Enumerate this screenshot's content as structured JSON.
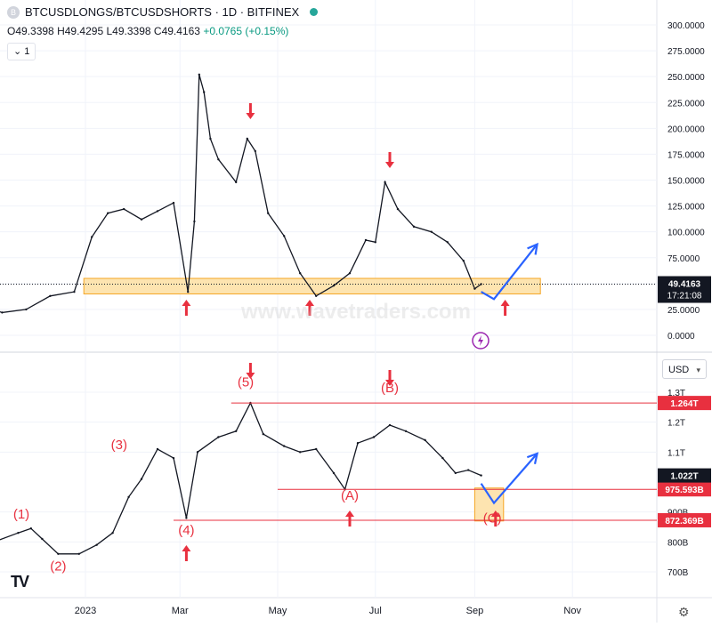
{
  "header": {
    "title": "BTCUSDLONGS/BTCUSDSHORTS · 1D · BITFINEX",
    "logo_letter": "B",
    "status_color": "#26a69a"
  },
  "ohlc": {
    "o_label": "O",
    "o": "49.3398",
    "h_label": "H",
    "h": "49.4295",
    "l_label": "L",
    "l": "49.3398",
    "c_label": "C",
    "c": "49.4163",
    "change": "+0.0765 (+0.15%)"
  },
  "collapse_label": "1",
  "currency_select": {
    "label": "USD",
    "chevron": "▾"
  },
  "watermark": "www.wavetraders.com",
  "tv_logo": "TV",
  "settings_icon": "⚙",
  "colors": {
    "price": "#131722",
    "accent_red": "#e8303f",
    "accent_blue": "#2962ff",
    "zone_fill": "#fde4b0",
    "zone_stroke": "#f5a623",
    "grid": "#f0f3fa"
  },
  "chart_data": [
    {
      "type": "line",
      "name": "upper-panel",
      "y_ticks": [
        "300.0000",
        "275.0000",
        "250.0000",
        "225.0000",
        "200.0000",
        "175.0000",
        "150.0000",
        "125.0000",
        "100.0000",
        "75.0000",
        "50.0000",
        "25.0000",
        "0.0000"
      ],
      "ylim": [
        0,
        300
      ],
      "x": [
        "2022-10-25",
        "2022-11-10",
        "2022-11-25",
        "2022-12-10",
        "2022-12-25",
        "2023-01-05",
        "2023-01-15",
        "2023-01-25",
        "2023-02-05",
        "2023-02-15",
        "2023-02-25",
        "2023-03-06",
        "2023-03-10",
        "2023-03-13",
        "2023-03-16",
        "2023-03-20",
        "2023-03-25",
        "2023-04-05",
        "2023-04-12",
        "2023-04-17",
        "2023-04-25",
        "2023-05-05",
        "2023-05-15",
        "2023-05-25",
        "2023-06-05",
        "2023-06-15",
        "2023-06-25",
        "2023-07-01",
        "2023-07-07",
        "2023-07-15",
        "2023-07-25",
        "2023-08-05",
        "2023-08-15",
        "2023-08-25",
        "2023-09-01",
        "2023-09-05"
      ],
      "values": [
        30,
        22,
        25,
        38,
        42,
        95,
        118,
        122,
        112,
        120,
        128,
        42,
        110,
        252,
        235,
        190,
        170,
        148,
        190,
        178,
        118,
        96,
        60,
        38,
        48,
        60,
        92,
        90,
        148,
        122,
        105,
        100,
        90,
        72,
        45,
        49.4163
      ],
      "price_label": "49.4163",
      "countdown": "17:21:08",
      "annotations": {
        "arrows_down_dates": [
          "2023-04-14",
          "2023-07-10"
        ],
        "arrows_up_dates": [
          "2023-03-05",
          "2023-05-21",
          "2023-09-20"
        ]
      },
      "projection": {
        "x": [
          "2023-09-05",
          "2023-09-13",
          "2023-10-10"
        ],
        "values": [
          42,
          35,
          88
        ]
      },
      "support_zone": {
        "x": [
          "2022-12-31",
          "2023-10-12"
        ],
        "values": [
          40,
          55
        ]
      }
    },
    {
      "type": "line",
      "name": "lower-panel",
      "y_ticks": [
        "1.3T",
        "1.2T",
        "1.1T",
        "900B",
        "800B",
        "700B"
      ],
      "ylim": [
        700000000000,
        1300000000000
      ],
      "x": [
        "2022-10-25",
        "2022-11-05",
        "2022-11-20",
        "2022-11-28",
        "2022-12-05",
        "2022-12-15",
        "2022-12-28",
        "2023-01-08",
        "2023-01-18",
        "2023-01-28",
        "2023-02-05",
        "2023-02-15",
        "2023-02-25",
        "2023-03-05",
        "2023-03-12",
        "2023-03-25",
        "2023-04-05",
        "2023-04-14",
        "2023-04-22",
        "2023-05-05",
        "2023-05-15",
        "2023-05-25",
        "2023-06-05",
        "2023-06-12",
        "2023-06-20",
        "2023-06-30",
        "2023-07-10",
        "2023-07-20",
        "2023-08-01",
        "2023-08-12",
        "2023-08-20",
        "2023-08-28",
        "2023-09-05"
      ],
      "values": [
        850000000000,
        800000000000,
        830000000000,
        845000000000,
        810000000000,
        760000000000,
        760000000000,
        790000000000,
        830000000000,
        950000000000,
        1010000000000,
        1110000000000,
        1080000000000,
        880000000000,
        1100000000000,
        1150000000000,
        1170000000000,
        1264000000000,
        1160000000000,
        1120000000000,
        1100000000000,
        1110000000000,
        1030000000000,
        975593000000,
        1130000000000,
        1150000000000,
        1190000000000,
        1170000000000,
        1140000000000,
        1080000000000,
        1030000000000,
        1040000000000,
        1022000000000
      ],
      "levels": [
        {
          "label": "1.264T",
          "value": 1264000000000,
          "from": "2023-04-02"
        },
        {
          "label": "975.593B",
          "value": 975593000000,
          "from": "2023-05-01"
        },
        {
          "label": "872.369B",
          "value": 872369000000,
          "from": "2023-02-25"
        }
      ],
      "price_label": "1.022T",
      "wave_labels": [
        {
          "text": "(1)",
          "x": "2022-11-22",
          "y": 878000000000
        },
        {
          "text": "(2)",
          "x": "2022-12-15",
          "y": 705000000000
        },
        {
          "text": "(3)",
          "x": "2023-01-22",
          "y": 1110000000000
        },
        {
          "text": "(4)",
          "x": "2023-03-05",
          "y": 825000000000
        },
        {
          "text": "(5)",
          "x": "2023-04-11",
          "y": 1320000000000
        },
        {
          "text": "(A)",
          "x": "2023-06-15",
          "y": 940000000000
        },
        {
          "text": "(B)",
          "x": "2023-07-10",
          "y": 1300000000000
        },
        {
          "text": "(C)",
          "x": "2023-09-12",
          "y": 865000000000
        }
      ],
      "annotations": {
        "arrows_down_dates": [
          "2023-04-14",
          "2023-07-10"
        ],
        "arrows_up_dates": [
          "2023-03-05",
          "2023-06-15",
          "2023-09-14"
        ]
      },
      "projection": {
        "x": [
          "2023-09-05",
          "2023-09-13",
          "2023-10-10"
        ],
        "values": [
          995000000000,
          930000000000,
          1095000000000
        ]
      },
      "target_zone": {
        "x": [
          "2023-09-01",
          "2023-09-19"
        ],
        "values": [
          870000000000,
          980000000000
        ]
      }
    }
  ],
  "x_axis": {
    "labels": [
      {
        "text": "2023",
        "date": "2023-01-01"
      },
      {
        "text": "Mar",
        "date": "2023-03-01"
      },
      {
        "text": "May",
        "date": "2023-05-01"
      },
      {
        "text": "Jul",
        "date": "2023-07-01"
      },
      {
        "text": "Sep",
        "date": "2023-09-01"
      },
      {
        "text": "Nov",
        "date": "2023-11-01"
      }
    ]
  }
}
